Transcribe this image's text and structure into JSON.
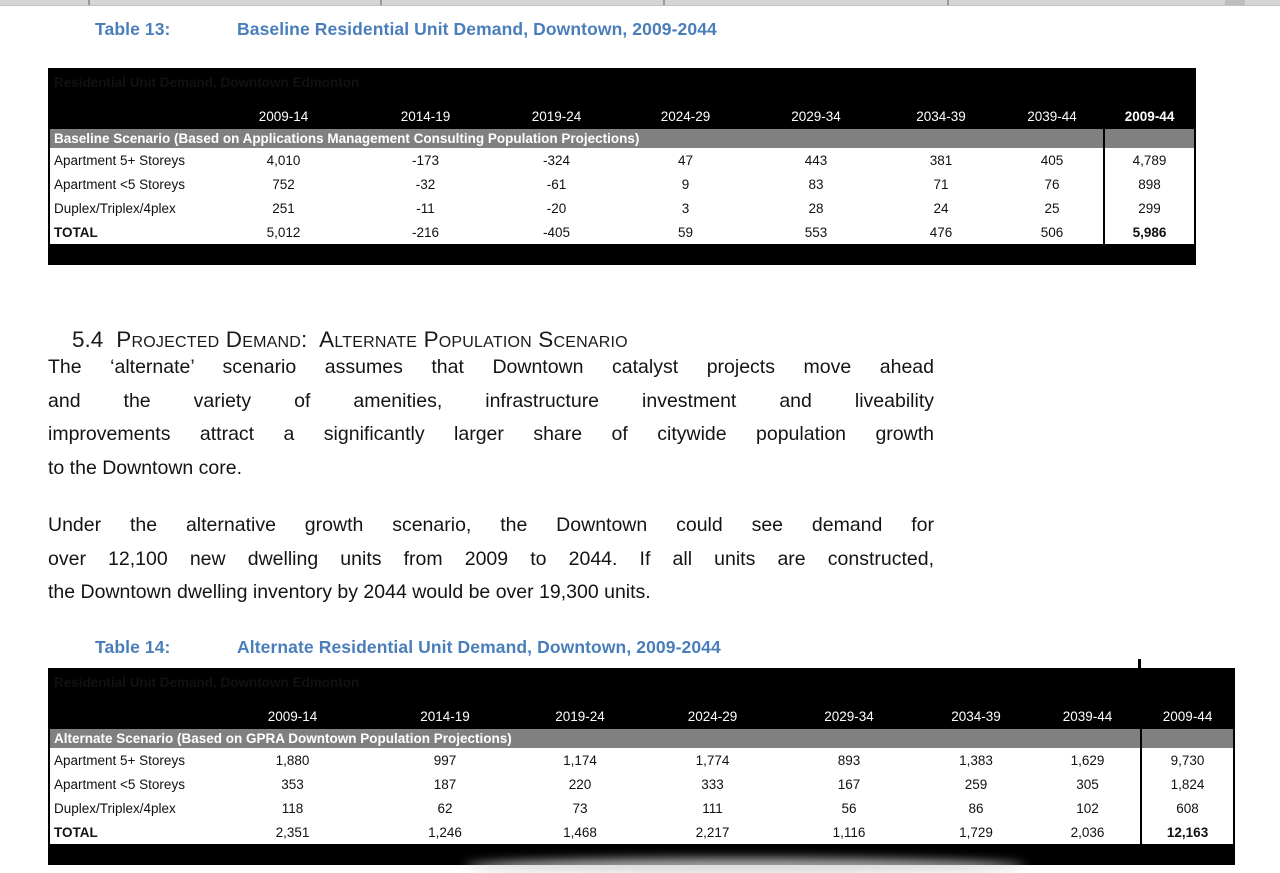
{
  "colors": {
    "accent_blue": "#4a7ebb",
    "header_black": "#000000",
    "band_gray": "#808080"
  },
  "table13": {
    "caption_label": "Table 13:",
    "caption_title": "Baseline Residential Unit Demand, Downtown, 2009-2044",
    "title": "Residential Unit Demand, Downtown Edmonton",
    "columns": [
      "2009-14",
      "2014-19",
      "2019-24",
      "2024-29",
      "2029-34",
      "2034-39",
      "2039-44",
      "2009-44"
    ],
    "last_header_bold": true,
    "scenario": "Baseline Scenario (Based on Applications Management Consulting Population Projections)",
    "rows": [
      {
        "label": "Apartment 5+ Storeys",
        "values": [
          "4,010",
          "-173",
          "-324",
          "47",
          "443",
          "381",
          "405",
          "4,789"
        ],
        "total": false
      },
      {
        "label": "Apartment <5 Storeys",
        "values": [
          "752",
          "-32",
          "-61",
          "9",
          "83",
          "71",
          "76",
          "898"
        ],
        "total": false
      },
      {
        "label": "Duplex/Triplex/4plex",
        "values": [
          "251",
          "-11",
          "-20",
          "3",
          "28",
          "24",
          "25",
          "299"
        ],
        "total": false
      },
      {
        "label": "TOTAL",
        "values": [
          "5,012",
          "-216",
          "-405",
          "59",
          "553",
          "476",
          "506",
          "5,986"
        ],
        "total": true
      }
    ]
  },
  "section": {
    "number": "5.4",
    "title": "Projected Demand:  Alternate Population Scenario"
  },
  "paragraph1": {
    "lines": [
      "The ‘alternate’ scenario assumes that Downtown catalyst projects move ahead",
      "and the variety of amenities, infrastructure investment and liveability",
      "improvements attract a significantly larger share of citywide population growth",
      "to the Downtown core."
    ]
  },
  "paragraph2": {
    "lines": [
      "Under the alternative growth scenario, the Downtown could see demand for",
      "over 12,100 new dwelling units from 2009 to 2044.  If all units are constructed,",
      "the Downtown dwelling inventory by 2044 would be over 19,300 units."
    ]
  },
  "table14": {
    "caption_label": "Table 14:",
    "caption_title": "Alternate Residential Unit Demand, Downtown, 2009-2044",
    "title": "Residential Unit Demand, Downtown Edmonton",
    "columns": [
      "2009-14",
      "2014-19",
      "2019-24",
      "2024-29",
      "2029-34",
      "2034-39",
      "2039-44",
      "2009-44"
    ],
    "last_header_bold": false,
    "scenario": "Alternate Scenario (Based on GPRA Downtown Population Projections)",
    "rows": [
      {
        "label": "Apartment 5+ Storeys",
        "values": [
          "1,880",
          "997",
          "1,174",
          "1,774",
          "893",
          "1,383",
          "1,629",
          "9,730"
        ],
        "total": false
      },
      {
        "label": "Apartment <5 Storeys",
        "values": [
          "353",
          "187",
          "220",
          "333",
          "167",
          "259",
          "305",
          "1,824"
        ],
        "total": false
      },
      {
        "label": "Duplex/Triplex/4plex",
        "values": [
          "118",
          "62",
          "73",
          "111",
          "56",
          "86",
          "102",
          "608"
        ],
        "total": false
      },
      {
        "label": "TOTAL",
        "values": [
          "2,351",
          "1,246",
          "1,468",
          "2,217",
          "1,116",
          "1,729",
          "2,036",
          "12,163"
        ],
        "total": true
      }
    ]
  }
}
